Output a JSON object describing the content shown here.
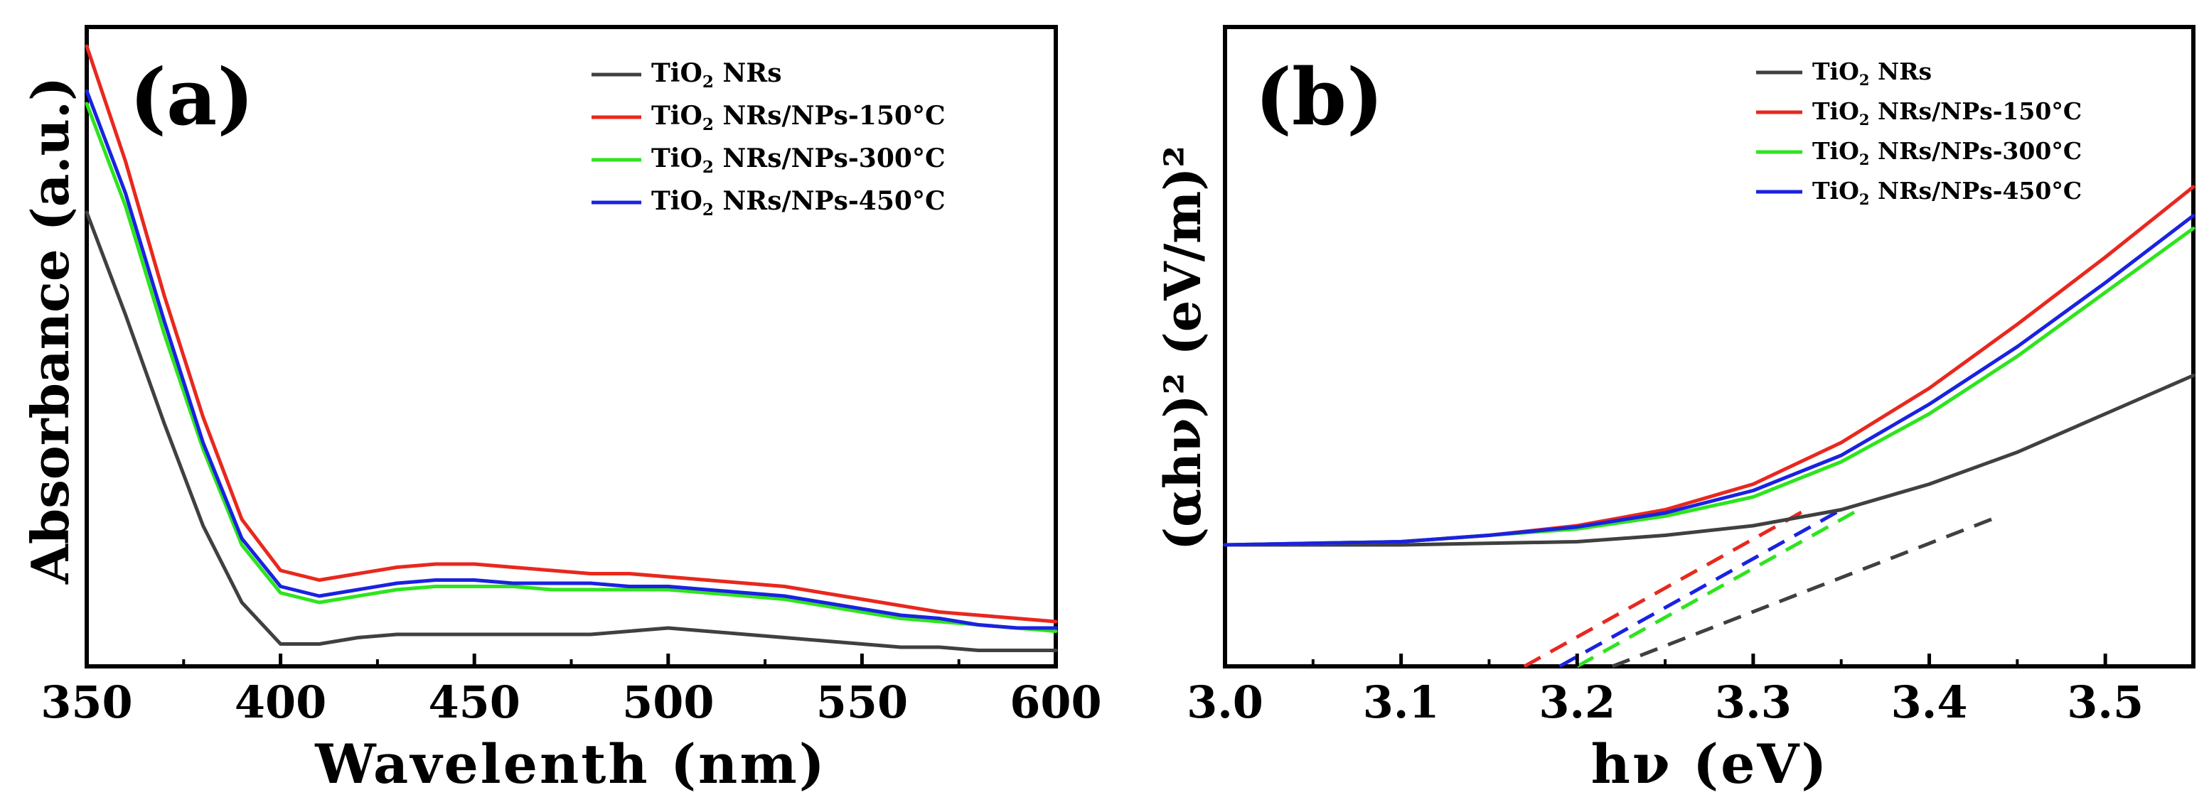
{
  "chart_data": [
    {
      "panel_label": "(a)",
      "type": "line",
      "xlabel": "Wavelenth (nm)",
      "ylabel": "Absorbance (a.u.)",
      "xlim": [
        350,
        600
      ],
      "ylim": [
        0,
        100
      ],
      "xticks": [
        350,
        400,
        450,
        500,
        550,
        600
      ],
      "y_tick_labels_shown": false,
      "legend_position": "top-right",
      "series": [
        {
          "name": "TiO2 NRs",
          "color": "#404040",
          "x": [
            350,
            360,
            370,
            380,
            390,
            400,
            410,
            420,
            430,
            440,
            450,
            460,
            470,
            480,
            490,
            500,
            510,
            520,
            530,
            540,
            550,
            560,
            570,
            580,
            590,
            600
          ],
          "y": [
            71,
            55,
            38,
            22,
            10,
            3.5,
            3.5,
            4.5,
            5,
            5,
            5,
            5,
            5,
            5,
            5.5,
            6,
            5.5,
            5,
            4.5,
            4,
            3.5,
            3,
            3,
            2.5,
            2.5,
            2.5
          ]
        },
        {
          "name": "TiO2 NRs/NPs-150°C",
          "color": "#e8281e",
          "x": [
            350,
            360,
            370,
            380,
            390,
            400,
            410,
            420,
            430,
            440,
            450,
            460,
            470,
            480,
            490,
            500,
            510,
            520,
            530,
            540,
            550,
            560,
            570,
            580,
            590,
            600
          ],
          "y": [
            97,
            79,
            58,
            39,
            23,
            15,
            13.5,
            14.5,
            15.5,
            16,
            16,
            15.5,
            15,
            14.5,
            14.5,
            14,
            13.5,
            13,
            12.5,
            11.5,
            10.5,
            9.5,
            8.5,
            8,
            7.5,
            7
          ]
        },
        {
          "name": "TiO2 NRs/NPs-300°C",
          "color": "#2ee41e",
          "x": [
            350,
            360,
            370,
            380,
            390,
            400,
            410,
            420,
            430,
            440,
            450,
            460,
            470,
            480,
            490,
            500,
            510,
            520,
            530,
            540,
            550,
            560,
            570,
            580,
            590,
            600
          ],
          "y": [
            88,
            72,
            52,
            34,
            19,
            11.5,
            10,
            11,
            12,
            12.5,
            12.5,
            12.5,
            12,
            12,
            12,
            12,
            11.5,
            11,
            10.5,
            9.5,
            8.5,
            7.5,
            7,
            6.5,
            6,
            5.5
          ]
        },
        {
          "name": "TiO2 NRs/NPs-450°C",
          "color": "#1a22e0",
          "x": [
            350,
            360,
            370,
            380,
            390,
            400,
            410,
            420,
            430,
            440,
            450,
            460,
            470,
            480,
            490,
            500,
            510,
            520,
            530,
            540,
            550,
            560,
            570,
            580,
            590,
            600
          ],
          "y": [
            90,
            74,
            54,
            35,
            20,
            12.5,
            11,
            12,
            13,
            13.5,
            13.5,
            13,
            13,
            13,
            12.5,
            12.5,
            12,
            11.5,
            11,
            10,
            9,
            8,
            7.5,
            6.5,
            6,
            6
          ]
        }
      ]
    },
    {
      "panel_label": "(b)",
      "type": "line",
      "xlabel": "hν (eV)",
      "ylabel": "(αhν)² (eV/m)²",
      "xlim": [
        3.0,
        3.55
      ],
      "ylim": [
        0,
        100
      ],
      "xticks": [
        3.0,
        3.1,
        3.2,
        3.3,
        3.4,
        3.5
      ],
      "y_tick_labels_shown": false,
      "legend_position": "top-right",
      "series": [
        {
          "name": "TiO2 NRs",
          "color": "#404040",
          "x": [
            3.0,
            3.1,
            3.2,
            3.25,
            3.3,
            3.35,
            3.4,
            3.45,
            3.5,
            3.55
          ],
          "y": [
            19,
            19,
            19.5,
            20.5,
            22,
            24.5,
            28.5,
            33.5,
            39.5,
            45.5
          ],
          "tangent": {
            "x": [
              3.22,
              3.44
            ],
            "y": [
              0,
              23.5
            ]
          }
        },
        {
          "name": "TiO2 NRs/NPs-150°C",
          "color": "#e8281e",
          "x": [
            3.0,
            3.1,
            3.15,
            3.2,
            3.25,
            3.3,
            3.35,
            3.4,
            3.45,
            3.5,
            3.55
          ],
          "y": [
            19,
            19.5,
            20.5,
            22,
            24.5,
            28.5,
            35,
            43.5,
            53.5,
            64,
            75
          ],
          "tangent": {
            "x": [
              3.17,
              3.33
            ],
            "y": [
              0,
              24.5
            ]
          }
        },
        {
          "name": "TiO2 NRs/NPs-300°C",
          "color": "#2ee41e",
          "x": [
            3.0,
            3.1,
            3.15,
            3.2,
            3.25,
            3.3,
            3.35,
            3.4,
            3.45,
            3.5,
            3.55
          ],
          "y": [
            19,
            19.5,
            20.5,
            21.5,
            23.5,
            26.5,
            32,
            39.5,
            48.5,
            58.5,
            68.5
          ],
          "tangent": {
            "x": [
              3.2,
              3.36
            ],
            "y": [
              0,
              24.5
            ]
          }
        },
        {
          "name": "TiO2 NRs/NPs-450°C",
          "color": "#1a22e0",
          "x": [
            3.0,
            3.1,
            3.15,
            3.2,
            3.25,
            3.3,
            3.35,
            3.4,
            3.45,
            3.5,
            3.55
          ],
          "y": [
            19,
            19.5,
            20.5,
            21.8,
            24,
            27.5,
            33,
            41,
            50,
            60,
            70.5
          ],
          "tangent": {
            "x": [
              3.19,
              3.35
            ],
            "y": [
              0,
              24.5
            ]
          }
        }
      ]
    }
  ]
}
